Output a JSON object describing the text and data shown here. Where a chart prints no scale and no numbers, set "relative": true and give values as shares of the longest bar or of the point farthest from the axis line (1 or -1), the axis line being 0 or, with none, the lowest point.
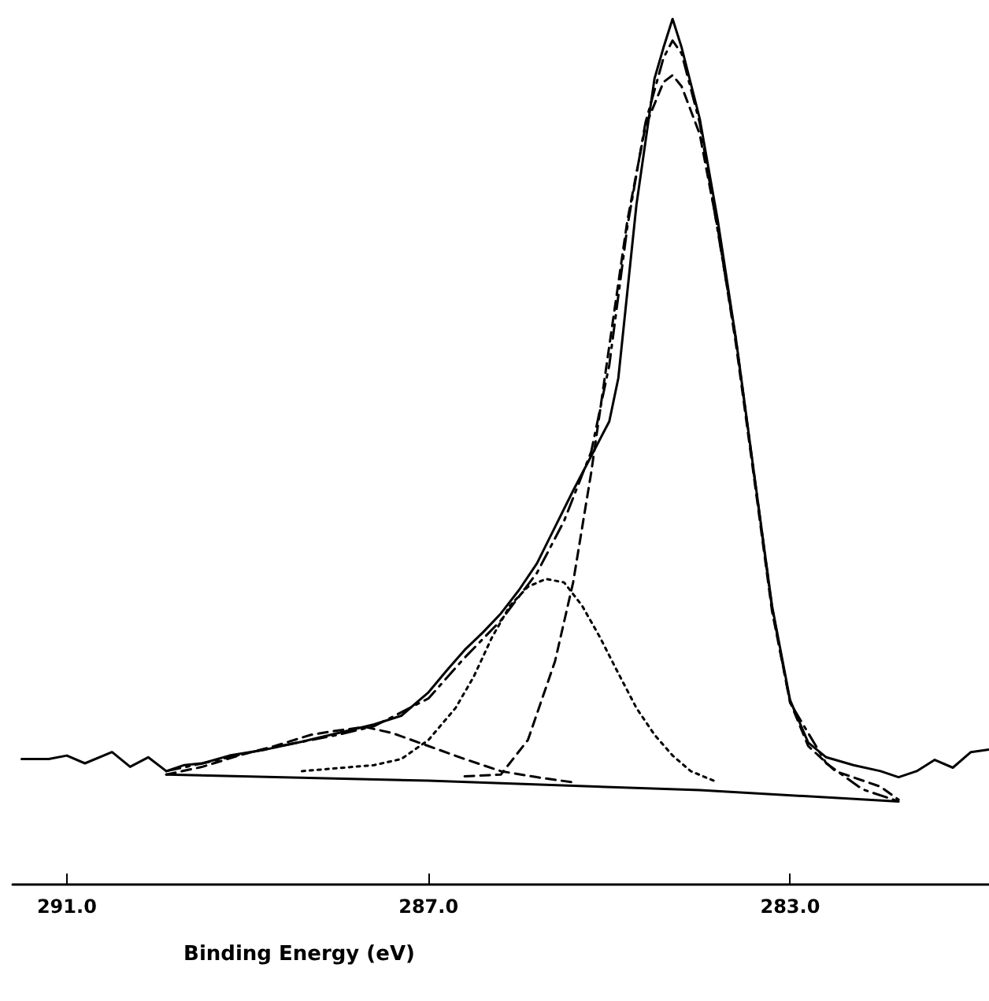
{
  "chart_data": {
    "type": "line",
    "xlabel": "Binding Energy (eV)",
    "relative": true,
    "xlim": [
      291.6,
      280.8
    ],
    "xticks": [
      {
        "value": 291,
        "label": "291.0"
      },
      {
        "value": 287,
        "label": "287.0"
      },
      {
        "value": 283,
        "label": "283.0"
      }
    ],
    "grid": false,
    "marker": "none",
    "tick_labels": "x",
    "series": [
      {
        "color": "#000000",
        "line_style": "solid",
        "x": [
          291.5,
          291.2,
          291.0,
          290.8,
          290.5,
          290.3,
          290.1,
          289.9,
          289.7,
          289.5,
          289.2,
          288.8,
          288.4,
          288.0,
          287.6,
          287.3,
          287.1,
          287.0,
          286.8,
          286.6,
          286.4,
          286.2,
          286.0,
          285.8,
          285.6,
          285.4,
          285.2,
          285.0,
          284.9,
          284.8,
          284.7,
          284.6,
          284.5,
          284.4,
          284.3,
          284.2,
          284.0,
          283.8,
          283.6,
          283.4,
          283.2,
          283.0,
          282.8,
          282.6,
          282.3,
          282.0,
          281.8,
          281.6,
          281.4,
          281.2,
          281.0,
          280.8
        ],
        "values": [
          0.145,
          0.145,
          0.149,
          0.14,
          0.153,
          0.136,
          0.147,
          0.131,
          0.138,
          0.14,
          0.149,
          0.156,
          0.165,
          0.175,
          0.185,
          0.195,
          0.213,
          0.222,
          0.247,
          0.271,
          0.291,
          0.313,
          0.34,
          0.371,
          0.413,
          0.455,
          0.495,
          0.535,
          0.585,
          0.685,
          0.785,
          0.858,
          0.931,
          0.967,
          1.0,
          0.967,
          0.885,
          0.767,
          0.631,
          0.476,
          0.322,
          0.213,
          0.164,
          0.147,
          0.138,
          0.131,
          0.124,
          0.131,
          0.144,
          0.135,
          0.153,
          0.156
        ]
      },
      {
        "color": "#000000",
        "line_style": "dashdot",
        "x": [
          289.9,
          289.5,
          289.0,
          288.5,
          288.0,
          287.6,
          287.0,
          286.6,
          286.2,
          285.8,
          285.5,
          285.2,
          285.0,
          284.8,
          284.6,
          284.4,
          284.3,
          284.2,
          284.0,
          283.6,
          283.2,
          283.0,
          282.6,
          282.2,
          281.8
        ],
        "values": [
          0.131,
          0.14,
          0.152,
          0.163,
          0.173,
          0.183,
          0.215,
          0.262,
          0.305,
          0.36,
          0.42,
          0.5,
          0.6,
          0.76,
          0.88,
          0.955,
          0.975,
          0.96,
          0.88,
          0.63,
          0.32,
          0.21,
          0.14,
          0.11,
          0.096
        ]
      },
      {
        "color": "#000000",
        "line_style": "dashed",
        "x": [
          286.6,
          286.2,
          285.9,
          285.6,
          285.4,
          285.2,
          285.0,
          284.8,
          284.6,
          284.4,
          284.3,
          284.2,
          284.0,
          283.8,
          283.6,
          283.4,
          283.2,
          283.0,
          282.8,
          282.5,
          282.0,
          281.8
        ],
        "values": [
          0.125,
          0.127,
          0.167,
          0.258,
          0.349,
          0.476,
          0.622,
          0.767,
          0.876,
          0.927,
          0.935,
          0.922,
          0.867,
          0.758,
          0.625,
          0.471,
          0.316,
          0.211,
          0.16,
          0.131,
          0.113,
          0.098
        ]
      },
      {
        "color": "#000000",
        "line_style": "dotted",
        "x": [
          288.4,
          287.6,
          287.3,
          287.0,
          286.7,
          286.5,
          286.3,
          286.1,
          285.9,
          285.7,
          285.5,
          285.3,
          285.1,
          284.9,
          284.7,
          284.5,
          284.3,
          284.1,
          283.8
        ],
        "values": [
          0.131,
          0.138,
          0.145,
          0.167,
          0.204,
          0.24,
          0.285,
          0.322,
          0.344,
          0.353,
          0.349,
          0.322,
          0.285,
          0.244,
          0.204,
          0.173,
          0.149,
          0.131,
          0.118
        ]
      },
      {
        "color": "#000000",
        "line_style": "dashed",
        "x": [
          289.9,
          289.5,
          289.1,
          288.7,
          288.3,
          288.0,
          287.7,
          287.4,
          287.0,
          286.6,
          286.2,
          285.8,
          285.4
        ],
        "values": [
          0.127,
          0.136,
          0.149,
          0.16,
          0.173,
          0.178,
          0.182,
          0.175,
          0.16,
          0.145,
          0.131,
          0.124,
          0.118
        ]
      },
      {
        "color": "#000000",
        "line_style": "solid",
        "x": [
          289.9,
          287.0,
          284.0,
          281.8
        ],
        "values": [
          0.127,
          0.12,
          0.109,
          0.096
        ]
      }
    ]
  }
}
